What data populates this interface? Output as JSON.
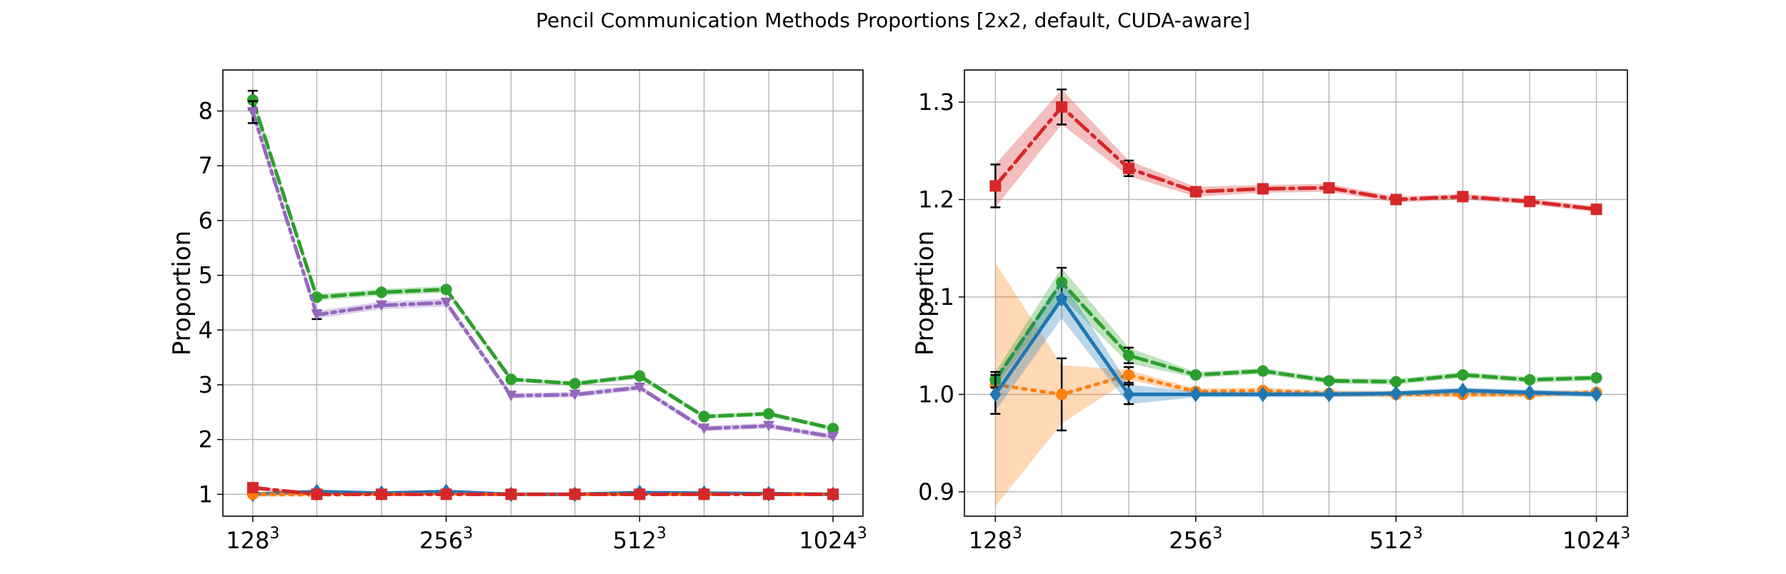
{
  "figure": {
    "title": "Pencil Communication Methods Proportions [2x2, default, CUDA-aware]"
  },
  "chart_data": [
    {
      "type": "line",
      "title": "",
      "xlabel": "",
      "ylabel": "Proportion",
      "grid": true,
      "legend": "none",
      "x": [
        128,
        161,
        203,
        256,
        323,
        406,
        512,
        645,
        813,
        1024
      ],
      "xscale": "log2",
      "xlim": [
        115,
        1140
      ],
      "ylim": [
        0.6,
        8.75
      ],
      "xticks": [
        {
          "value": 128,
          "base": "128",
          "exp": "3"
        },
        {
          "value": 256,
          "base": "256",
          "exp": "3"
        },
        {
          "value": 512,
          "base": "512",
          "exp": "3"
        },
        {
          "value": 1024,
          "base": "1024",
          "exp": "3"
        }
      ],
      "yticks": [
        {
          "value": 1,
          "label": "1"
        },
        {
          "value": 2,
          "label": "2"
        },
        {
          "value": 3,
          "label": "3"
        },
        {
          "value": 4,
          "label": "4"
        },
        {
          "value": 5,
          "label": "5"
        },
        {
          "value": 6,
          "label": "6"
        },
        {
          "value": 7,
          "label": "7"
        },
        {
          "value": 8,
          "label": "8"
        }
      ],
      "series": [
        {
          "color": "#1f77b4",
          "linestyle": "solid",
          "marker": "diamond",
          "values": [
            1.0,
            1.05,
            1.02,
            1.05,
            1.0,
            1.0,
            1.03,
            1.02,
            1.01,
            1.0
          ],
          "band": [
            0.03,
            0.03,
            0.02,
            0.02,
            0.02,
            0.02,
            0.02,
            0.02,
            0.02,
            0.02
          ]
        },
        {
          "color": "#ff7f0e",
          "linestyle": "dotted",
          "marker": "circle",
          "values": [
            1.0,
            0.99,
            1.0,
            1.0,
            1.0,
            1.0,
            1.0,
            1.0,
            1.0,
            1.0
          ],
          "band": [
            0.05,
            0.02,
            0.02,
            0.02,
            0.02,
            0.02,
            0.02,
            0.02,
            0.02,
            0.02
          ]
        },
        {
          "color": "#2ca02c",
          "linestyle": "dashed",
          "marker": "circle",
          "values": [
            8.2,
            4.6,
            4.69,
            4.74,
            3.1,
            3.02,
            3.16,
            2.42,
            2.47,
            2.2
          ],
          "band": [
            0.1,
            0.06,
            0.06,
            0.06,
            0.04,
            0.04,
            0.05,
            0.04,
            0.04,
            0.04
          ],
          "err": [
            0.17,
            0,
            0,
            0,
            0,
            0,
            0,
            0,
            0,
            0
          ]
        },
        {
          "color": "#d62728",
          "linestyle": "dashdot",
          "marker": "square",
          "values": [
            1.12,
            1.0,
            1.0,
            1.0,
            1.0,
            1.0,
            1.0,
            1.0,
            1.0,
            1.0
          ],
          "band": [
            0.04,
            0.02,
            0.02,
            0.02,
            0.02,
            0.02,
            0.02,
            0.02,
            0.02,
            0.02
          ]
        },
        {
          "color": "#9467bd",
          "linestyle": "dashdotdot",
          "marker": "triangle-down",
          "values": [
            7.98,
            4.28,
            4.45,
            4.5,
            2.8,
            2.82,
            2.95,
            2.2,
            2.25,
            2.05
          ],
          "band": [
            0.12,
            0.07,
            0.07,
            0.07,
            0.05,
            0.05,
            0.05,
            0.05,
            0.05,
            0.05
          ],
          "err": [
            0.2,
            0.08,
            0,
            0,
            0,
            0,
            0,
            0,
            0,
            0
          ]
        }
      ]
    },
    {
      "type": "line",
      "title": "",
      "xlabel": "",
      "ylabel": "Proportion",
      "grid": true,
      "legend": "none",
      "x": [
        128,
        161,
        203,
        256,
        323,
        406,
        512,
        645,
        813,
        1024
      ],
      "xscale": "log2",
      "xlim": [
        115,
        1140
      ],
      "ylim": [
        0.875,
        1.333
      ],
      "xticks": [
        {
          "value": 128,
          "base": "128",
          "exp": "3"
        },
        {
          "value": 256,
          "base": "256",
          "exp": "3"
        },
        {
          "value": 512,
          "base": "512",
          "exp": "3"
        },
        {
          "value": 1024,
          "base": "1024",
          "exp": "3"
        }
      ],
      "yticks": [
        {
          "value": 0.9,
          "label": "0.9"
        },
        {
          "value": 1.0,
          "label": "1.0"
        },
        {
          "value": 1.1,
          "label": "1.1"
        },
        {
          "value": 1.2,
          "label": "1.2"
        },
        {
          "value": 1.3,
          "label": "1.3"
        }
      ],
      "series": [
        {
          "color": "#ff7f0e",
          "linestyle": "dotted",
          "marker": "circle",
          "values": [
            1.01,
            1.0,
            1.02,
            1.003,
            1.004,
            1.001,
            1.0,
            1.0,
            1.0,
            1.002
          ],
          "band": [
            0.125,
            0.03,
            0.005,
            0.003,
            0.003,
            0.003,
            0.003,
            0.003,
            0.003,
            0.003
          ],
          "err": [
            0,
            0.037,
            0.008,
            0,
            0,
            0,
            0,
            0,
            0,
            0
          ]
        },
        {
          "color": "#2ca02c",
          "linestyle": "dashed",
          "marker": "circle",
          "values": [
            1.015,
            1.115,
            1.04,
            1.02,
            1.024,
            1.014,
            1.013,
            1.02,
            1.015,
            1.017
          ],
          "band": [
            0.008,
            0.015,
            0.008,
            0.003,
            0.003,
            0.003,
            0.003,
            0.003,
            0.003,
            0.003
          ],
          "err": [
            0.008,
            0.015,
            0.008,
            0,
            0,
            0,
            0,
            0,
            0,
            0
          ]
        },
        {
          "color": "#1f77b4",
          "linestyle": "solid",
          "marker": "diamond",
          "values": [
            1.0,
            1.098,
            1.0,
            1.0,
            1.0,
            1.0,
            1.001,
            1.004,
            1.002,
            1.0
          ],
          "band": [
            0.017,
            0.02,
            0.01,
            0.003,
            0.003,
            0.003,
            0.003,
            0.003,
            0.003,
            0.003
          ],
          "err": [
            0.02,
            0,
            0.01,
            0,
            0,
            0,
            0,
            0,
            0,
            0
          ]
        },
        {
          "color": "#d62728",
          "linestyle": "dashdot",
          "marker": "square",
          "values": [
            1.214,
            1.295,
            1.232,
            1.208,
            1.211,
            1.212,
            1.2,
            1.203,
            1.198,
            1.19
          ],
          "band": [
            0.022,
            0.018,
            0.008,
            0.005,
            0.004,
            0.004,
            0.003,
            0.003,
            0.003,
            0.003
          ],
          "err": [
            0.022,
            0.018,
            0.008,
            0,
            0,
            0,
            0,
            0,
            0,
            0
          ]
        }
      ]
    }
  ]
}
